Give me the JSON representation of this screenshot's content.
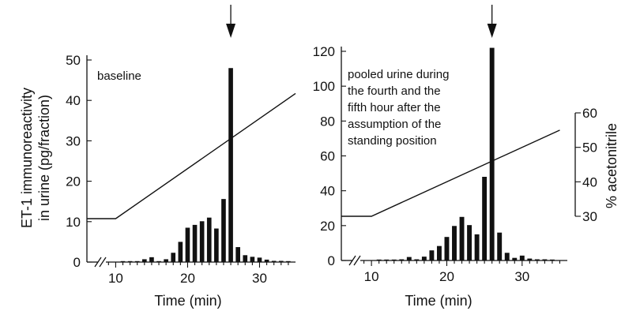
{
  "chart_data": [
    {
      "type": "bar",
      "ylabel_line1": "ET-1 immunoreactivity",
      "ylabel_line2": "in urine (pg/fraction)",
      "xlabel": "Time (min)",
      "annotation": [
        "baseline"
      ],
      "xlim": [
        6,
        35
      ],
      "ylim": [
        0,
        50
      ],
      "xticks": [
        10,
        20,
        30
      ],
      "yticks": [
        0,
        10,
        20,
        30,
        40,
        50
      ],
      "arrow_at": 26,
      "x": [
        11,
        12,
        13,
        14,
        15,
        16,
        17,
        18,
        19,
        20,
        21,
        22,
        23,
        24,
        25,
        26,
        27,
        28,
        29,
        30,
        31,
        32,
        33,
        34
      ],
      "values": [
        0,
        0,
        0,
        0.7,
        1.2,
        0,
        0.7,
        2.3,
        5,
        8.5,
        9.2,
        10.1,
        11,
        8.3,
        15.6,
        48,
        3.7,
        1.7,
        1.3,
        1.1,
        0.6,
        0.3,
        0.2,
        0
      ],
      "gradient": {
        "flat_from": 6,
        "ramp_start": 10,
        "ramp_end": 35,
        "value_start": 30,
        "value_end": 59
      }
    },
    {
      "type": "bar",
      "ylabel_right": "% acetonitrile",
      "xlabel": "Time (min)",
      "annotation": [
        "pooled urine during",
        "the fourth and the",
        "fifth hour after the",
        "assumption of the",
        "standing position"
      ],
      "xlim": [
        6,
        36
      ],
      "ylim": [
        0,
        120
      ],
      "xticks": [
        10,
        20,
        30
      ],
      "yticks": [
        0,
        20,
        40,
        60,
        80,
        100,
        120
      ],
      "right_yticks": [
        30,
        40,
        50,
        60
      ],
      "right_ylim": [
        30,
        60
      ],
      "arrow_at": 26,
      "x": [
        11,
        12,
        13,
        14,
        15,
        16,
        17,
        18,
        19,
        20,
        21,
        22,
        23,
        24,
        25,
        26,
        27,
        28,
        29,
        30,
        31,
        32,
        33,
        34
      ],
      "values": [
        0,
        0,
        0,
        0.5,
        2,
        0.6,
        2.2,
        5.8,
        8.3,
        13.5,
        19.8,
        25,
        20.3,
        15,
        48,
        122,
        16,
        4.4,
        1.5,
        2.8,
        1.1,
        0.4,
        0.2,
        0
      ],
      "gradient": {
        "flat_from": 6,
        "ramp_start": 10,
        "ramp_end": 35,
        "value_start": 30,
        "value_end": 55
      }
    }
  ]
}
